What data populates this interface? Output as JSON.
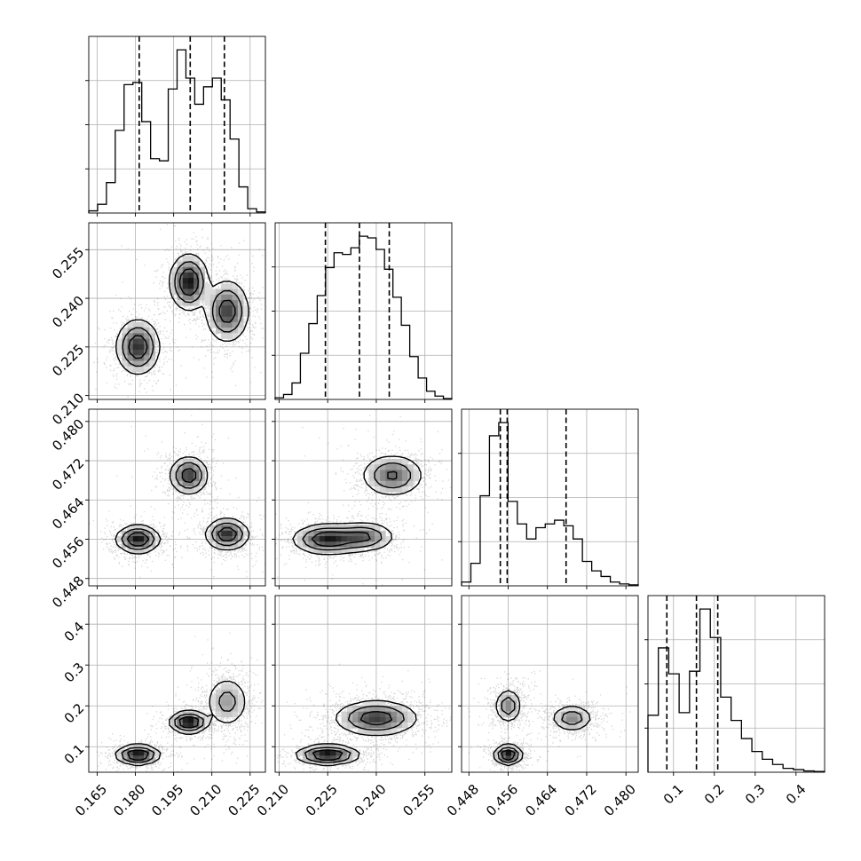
{
  "chart_data": {
    "type": "corner",
    "title": "",
    "params": [
      {
        "range": [
          0.1617,
          0.231
        ],
        "ticks": [
          0.165,
          0.18,
          0.195,
          0.21,
          0.225
        ],
        "tick_labels": [
          "0.165",
          "0.180",
          "0.195",
          "0.210",
          "0.225"
        ],
        "quantiles": [
          0.1815,
          0.2015,
          0.2149
        ],
        "hist": [
          1,
          4,
          14,
          38,
          59,
          60,
          42,
          25,
          24,
          57,
          75,
          62,
          50,
          58,
          62,
          52,
          34,
          12,
          2,
          0.5
        ]
      },
      {
        "range": [
          0.2088,
          0.2633
        ],
        "ticks": [
          0.21,
          0.225,
          0.24,
          0.255
        ],
        "tick_labels": [
          "0.210",
          "0.225",
          "0.240",
          "0.255"
        ],
        "quantiles": [
          0.2243,
          0.2348,
          0.244
        ],
        "hist": [
          1,
          3,
          10,
          28,
          46,
          63,
          80,
          89,
          88,
          92,
          99,
          98,
          91,
          79,
          62,
          45,
          26,
          13,
          5,
          2,
          0.5
        ]
      },
      {
        "range": [
          0.4465,
          0.4825
        ],
        "ticks": [
          0.448,
          0.456,
          0.464,
          0.472,
          0.48
        ],
        "tick_labels": [
          "0.448",
          "0.456",
          "0.464",
          "0.472",
          "0.480"
        ],
        "quantiles": [
          0.4544,
          0.4558,
          0.4678
        ],
        "hist": [
          2,
          12,
          48,
          80,
          87,
          45,
          33,
          25,
          31,
          33,
          35,
          32,
          25,
          13,
          8,
          5,
          2,
          1,
          0.5
        ]
      },
      {
        "range": [
          0.0375,
          0.47
        ],
        "ticks": [
          0.1,
          0.2,
          0.3,
          0.4
        ],
        "tick_labels": [
          "0.1",
          "0.2",
          "0.3",
          "0.4"
        ],
        "quantiles": [
          0.0837,
          0.1562,
          0.2084
        ],
        "hist": [
          22,
          48,
          38,
          23,
          39,
          63,
          52,
          29,
          20,
          13,
          8,
          5,
          3,
          1.5,
          1,
          0.5,
          0.3
        ]
      }
    ],
    "modes": [
      {
        "p": [
          0.181,
          0.225,
          0.456,
          0.08
        ],
        "s": [
          0.004,
          0.004,
          0.0013,
          0.011
        ],
        "w": 0.33
      },
      {
        "p": [
          0.201,
          0.245,
          0.469,
          0.16
        ],
        "s": [
          0.0035,
          0.004,
          0.0018,
          0.012
        ],
        "w": 0.33
      },
      {
        "p": [
          0.216,
          0.236,
          0.457,
          0.21
        ],
        "s": [
          0.004,
          0.0045,
          0.0015,
          0.03
        ],
        "w": 0.34
      }
    ],
    "pair_modes": [
      {
        "i": 1,
        "j": 0,
        "modes": [
          {
            "p": [
              0.181,
              0.225
            ],
            "s": [
              0.004,
              0.004
            ],
            "w": 0.33
          },
          {
            "p": [
              0.201,
              0.245
            ],
            "s": [
              0.0035,
              0.004
            ],
            "w": 0.33
          },
          {
            "p": [
              0.216,
              0.236
            ],
            "s": [
              0.004,
              0.0045
            ],
            "w": 0.34
          }
        ]
      },
      {
        "i": 2,
        "j": 0,
        "modes": [
          {
            "p": [
              0.181,
              0.456
            ],
            "s": [
              0.004,
              0.0013
            ],
            "w": 0.33
          },
          {
            "p": [
              0.201,
              0.469
            ],
            "s": [
              0.0035,
              0.0018
            ],
            "w": 0.33
          },
          {
            "p": [
              0.216,
              0.457
            ],
            "s": [
              0.004,
              0.0015
            ],
            "w": 0.34
          }
        ]
      },
      {
        "i": 2,
        "j": 1,
        "modes": [
          {
            "p": [
              0.225,
              0.456
            ],
            "s": [
              0.005,
              0.0014
            ],
            "w": 0.4
          },
          {
            "p": [
              0.236,
              0.4565
            ],
            "s": [
              0.0045,
              0.0014
            ],
            "w": 0.25
          },
          {
            "p": [
              0.245,
              0.469
            ],
            "s": [
              0.0045,
              0.002
            ],
            "w": 0.35
          }
        ]
      },
      {
        "i": 3,
        "j": 0,
        "modes": [
          {
            "p": [
              0.181,
              0.08
            ],
            "s": [
              0.004,
              0.011
            ],
            "w": 0.33
          },
          {
            "p": [
              0.201,
              0.16
            ],
            "s": [
              0.0035,
              0.012
            ],
            "w": 0.33
          },
          {
            "p": [
              0.216,
              0.21
            ],
            "s": [
              0.004,
              0.03
            ],
            "w": 0.34
          }
        ]
      },
      {
        "i": 3,
        "j": 1,
        "modes": [
          {
            "p": [
              0.225,
              0.08
            ],
            "s": [
              0.0045,
              0.011
            ],
            "w": 0.35
          },
          {
            "p": [
              0.24,
              0.17
            ],
            "s": [
              0.006,
              0.02
            ],
            "w": 0.65
          }
        ]
      },
      {
        "i": 3,
        "j": 2,
        "modes": [
          {
            "p": [
              0.456,
              0.08
            ],
            "s": [
              0.0013,
              0.011
            ],
            "w": 0.35
          },
          {
            "p": [
              0.456,
              0.2
            ],
            "s": [
              0.0013,
              0.02
            ],
            "w": 0.3
          },
          {
            "p": [
              0.469,
              0.17
            ],
            "s": [
              0.002,
              0.015
            ],
            "w": 0.35
          }
        ]
      }
    ],
    "grid": true,
    "legend": "none"
  }
}
